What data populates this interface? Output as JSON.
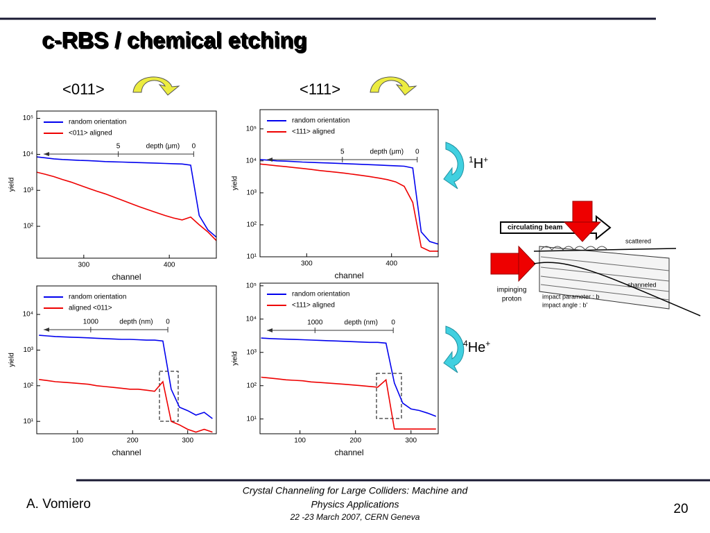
{
  "slide": {
    "title": "c-RBS / chemical etching",
    "dir1": "<011>",
    "dir2": "<111>",
    "ion1": {
      "mass": "1",
      "symbol": "H",
      "charge": "+"
    },
    "ion2": {
      "mass": "4",
      "symbol": "He",
      "charge": "+"
    },
    "diagram": {
      "beam": "circulating beam",
      "scattered": "scattered",
      "channeled": "channeled",
      "proton1": "impinging",
      "proton2": "proton",
      "param": "impact parameter : b",
      "angle": "impact angle : b'"
    },
    "author": "A. Vomiero",
    "conf1": "Crystal Channeling for Large Colliders: Machine and",
    "conf2": "Physics Applications",
    "conf3": "22 -23  March 2007, CERN Geneva",
    "page": "20"
  },
  "chart_data": [
    {
      "type": "line",
      "xlabel": "channel",
      "ylabel": "yield",
      "yscale": "log",
      "xlim": [
        245,
        455
      ],
      "xticks": [
        300,
        400
      ],
      "ylim": [
        13,
        160000
      ],
      "yticks": [
        {
          "value": 100,
          "label": "10²"
        },
        {
          "value": 1000,
          "label": "10³"
        },
        {
          "value": 10000,
          "label": "10⁴"
        },
        {
          "value": 100000,
          "label": "10⁵"
        }
      ],
      "x2label": "depth (μm)",
      "x2lim": [
        10.4,
        -1.5
      ],
      "x2ticks": [
        5,
        0
      ],
      "x": [
        245,
        255,
        265,
        275,
        285,
        295,
        305,
        315,
        325,
        335,
        345,
        355,
        365,
        375,
        385,
        395,
        405,
        415,
        425,
        435,
        445,
        455
      ],
      "series": [
        {
          "name": "random orientation",
          "color": "#0000ee",
          "values": [
            8500,
            8000,
            7500,
            7200,
            7000,
            6800,
            6700,
            6500,
            6300,
            6200,
            6100,
            6000,
            5900,
            5800,
            5700,
            5600,
            5500,
            5400,
            5000,
            200,
            80,
            50
          ]
        },
        {
          "name": "<011> aligned",
          "color": "#ee0000",
          "values": [
            3200,
            2800,
            2400,
            2000,
            1700,
            1400,
            1150,
            950,
            800,
            650,
            530,
            430,
            350,
            290,
            240,
            200,
            170,
            150,
            180,
            110,
            70,
            40
          ]
        }
      ]
    },
    {
      "type": "line",
      "xlabel": "channel",
      "ylabel": "yield",
      "yscale": "log",
      "xlim": [
        245,
        455
      ],
      "xticks": [
        300,
        400
      ],
      "ylim": [
        10,
        400000
      ],
      "yticks": [
        {
          "value": 10,
          "label": "10¹"
        },
        {
          "value": 100,
          "label": "10²"
        },
        {
          "value": 1000,
          "label": "10³"
        },
        {
          "value": 10000,
          "label": "10⁴"
        },
        {
          "value": 100000,
          "label": "10⁵"
        }
      ],
      "x2label": "depth (μm)",
      "x2lim": [
        10.5,
        -1.4
      ],
      "x2ticks": [
        5,
        0
      ],
      "x": [
        245,
        255,
        265,
        275,
        285,
        295,
        305,
        315,
        325,
        335,
        345,
        355,
        365,
        375,
        385,
        395,
        405,
        415,
        425,
        435,
        445,
        455
      ],
      "series": [
        {
          "name": "random orientation",
          "color": "#0000ee",
          "values": [
            11000,
            10500,
            10000,
            9800,
            9500,
            9200,
            9000,
            8800,
            8600,
            8400,
            8200,
            8000,
            7800,
            7600,
            7400,
            7200,
            7000,
            6800,
            6000,
            60,
            30,
            25
          ]
        },
        {
          "name": "<111> aligned",
          "color": "#ee0000",
          "values": [
            8000,
            7500,
            7000,
            6600,
            6200,
            5800,
            5400,
            5000,
            4700,
            4400,
            4100,
            3800,
            3500,
            3200,
            2900,
            2600,
            2200,
            1600,
            500,
            20,
            15,
            15
          ]
        }
      ]
    },
    {
      "type": "line",
      "xlabel": "channel",
      "ylabel": "yield",
      "yscale": "log",
      "xlim": [
        26,
        352
      ],
      "xticks": [
        100,
        200,
        300
      ],
      "ylim": [
        4.5,
        63000
      ],
      "yticks": [
        {
          "value": 10,
          "label": "10¹"
        },
        {
          "value": 100,
          "label": "10²"
        },
        {
          "value": 1000,
          "label": "10³"
        },
        {
          "value": 10000,
          "label": "10⁴"
        }
      ],
      "x2label": "depth  (nm)",
      "x2lim": [
        1700,
        -629
      ],
      "x2ticks": [
        1000,
        0
      ],
      "x": [
        30,
        45,
        60,
        75,
        90,
        105,
        120,
        135,
        150,
        165,
        180,
        195,
        210,
        225,
        240,
        255,
        270,
        285,
        300,
        315,
        330,
        345
      ],
      "series": [
        {
          "name": "random orientation",
          "color": "#0000ee",
          "values": [
            2600,
            2500,
            2400,
            2350,
            2300,
            2250,
            2200,
            2150,
            2100,
            2050,
            2000,
            2000,
            1950,
            1900,
            1900,
            1800,
            80,
            25,
            20,
            15,
            18,
            12
          ]
        },
        {
          "name": "aligned <011>",
          "color": "#ee0000",
          "values": [
            150,
            140,
            130,
            125,
            120,
            115,
            110,
            100,
            95,
            90,
            85,
            80,
            80,
            75,
            70,
            130,
            10,
            8,
            6,
            5,
            6,
            5
          ]
        }
      ]
    },
    {
      "type": "line",
      "xlabel": "channel",
      "ylabel": "yield",
      "yscale": "log",
      "xlim": [
        28,
        349
      ],
      "xticks": [
        100,
        200,
        300
      ],
      "ylim": [
        3.6,
        120000
      ],
      "yticks": [
        {
          "value": 10,
          "label": "10¹"
        },
        {
          "value": 100,
          "label": "10²"
        },
        {
          "value": 1000,
          "label": "10³"
        },
        {
          "value": 10000,
          "label": "10⁴"
        },
        {
          "value": 100000,
          "label": "10⁵"
        }
      ],
      "x2label": "depth  (nm)",
      "x2lim": [
        1702,
        -574
      ],
      "x2ticks": [
        1000,
        0
      ],
      "x": [
        30,
        45,
        60,
        75,
        90,
        105,
        120,
        135,
        150,
        165,
        180,
        195,
        210,
        225,
        240,
        255,
        270,
        285,
        300,
        315,
        330,
        345
      ],
      "series": [
        {
          "name": "random orientation",
          "color": "#0000ee",
          "values": [
            2700,
            2600,
            2550,
            2500,
            2450,
            2400,
            2350,
            2300,
            2250,
            2200,
            2150,
            2100,
            2050,
            2000,
            2000,
            1900,
            120,
            30,
            20,
            18,
            15,
            12
          ]
        },
        {
          "name": "<111> aligned",
          "color": "#ee0000",
          "values": [
            180,
            170,
            160,
            150,
            145,
            140,
            130,
            125,
            120,
            115,
            110,
            105,
            100,
            95,
            90,
            150,
            5,
            5,
            5,
            5,
            5,
            5
          ]
        }
      ]
    }
  ]
}
